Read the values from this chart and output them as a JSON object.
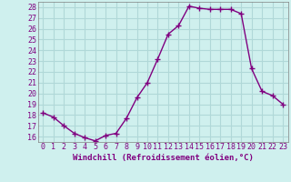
{
  "x": [
    0,
    1,
    2,
    3,
    4,
    5,
    6,
    7,
    8,
    9,
    10,
    11,
    12,
    13,
    14,
    15,
    16,
    17,
    18,
    19,
    20,
    21,
    22,
    23
  ],
  "y": [
    18.2,
    17.8,
    17.0,
    16.3,
    15.9,
    15.6,
    16.1,
    16.3,
    17.7,
    19.6,
    21.0,
    23.2,
    25.5,
    26.3,
    28.1,
    27.9,
    27.8,
    27.8,
    27.8,
    27.4,
    22.3,
    20.2,
    19.8,
    19.0
  ],
  "line_color": "#800080",
  "marker": "+",
  "markersize": 4,
  "linewidth": 1.0,
  "xlabel": "Windchill (Refroidissement éolien,°C)",
  "xlim": [
    -0.5,
    23.5
  ],
  "ylim": [
    15.5,
    28.5
  ],
  "yticks": [
    16,
    17,
    18,
    19,
    20,
    21,
    22,
    23,
    24,
    25,
    26,
    27,
    28
  ],
  "xticks": [
    0,
    1,
    2,
    3,
    4,
    5,
    6,
    7,
    8,
    9,
    10,
    11,
    12,
    13,
    14,
    15,
    16,
    17,
    18,
    19,
    20,
    21,
    22,
    23
  ],
  "xtick_labels": [
    "0",
    "1",
    "2",
    "3",
    "4",
    "5",
    "6",
    "7",
    "8",
    "9",
    "10",
    "11",
    "12",
    "13",
    "14",
    "15",
    "16",
    "17",
    "18",
    "19",
    "20",
    "21",
    "22",
    "23"
  ],
  "bg_color": "#cff0ee",
  "grid_color": "#b0d8d8",
  "tick_color": "#800080",
  "label_color": "#800080",
  "xlabel_fontsize": 6.5,
  "tick_fontsize": 6,
  "spine_color": "#808080"
}
